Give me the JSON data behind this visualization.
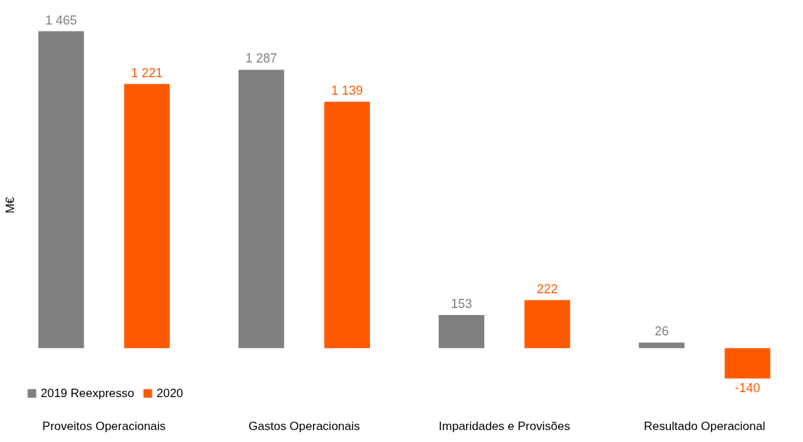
{
  "chart_data": {
    "type": "bar",
    "ylabel": "M€",
    "categories": [
      "Proveitos Operacionais",
      "Gastos Operacionais",
      "Imparidades e Provisões",
      "Resultado Operacional"
    ],
    "series": [
      {
        "name": "2019 Reexpresso",
        "color": "#808080",
        "values": [
          1465,
          1287,
          153,
          26
        ],
        "value_labels": [
          "1 465",
          "1 287",
          "153",
          "26"
        ]
      },
      {
        "name": "2020",
        "color": "#ff5a00",
        "values": [
          1221,
          1139,
          222,
          -140
        ],
        "value_labels": [
          "1 221",
          "1 139",
          "222",
          "-140"
        ]
      }
    ],
    "legend": "bottom left",
    "grid": false
  }
}
